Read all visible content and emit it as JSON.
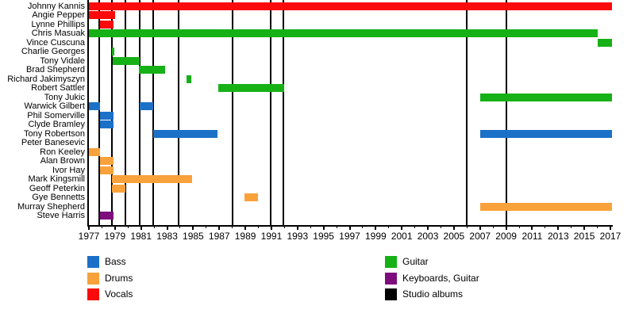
{
  "chart_data": {
    "type": "timeline-gantt",
    "description": "Band members timeline with studio album release markers",
    "axis": {
      "unit": "year",
      "min": 1977,
      "max": 2017,
      "major_tick_step": 2,
      "minor_tick_step": 1,
      "tick_years": [
        1977,
        1979,
        1981,
        1983,
        1985,
        1987,
        1989,
        1991,
        1993,
        1995,
        1997,
        1999,
        2001,
        2003,
        2005,
        2007,
        2009,
        2011,
        2013,
        2015,
        2017
      ]
    },
    "roles": {
      "Bass": "#1b70c8",
      "Drums": "#f9a13b",
      "Vocals": "#fa0a0a",
      "Guitar": "#16b116",
      "Keyboards, Guitar": "#7d0c7d"
    },
    "album_line_color": "#000000",
    "album_years": [
      1977.78,
      1978.78,
      1979.8,
      1980.9,
      1981.95,
      1983.9,
      1988.0,
      1990.95,
      1991.92,
      2006.0,
      2009.0
    ],
    "members": [
      {
        "name": "Johnny Kannis",
        "bars": [
          {
            "role": "Vocals",
            "start": 1977,
            "end": 2017.1
          }
        ]
      },
      {
        "name": "Angie Pepper",
        "bars": [
          {
            "role": "Vocals",
            "start": 1977,
            "end": 1979.0
          }
        ]
      },
      {
        "name": "Lynne Phillips",
        "bars": [
          {
            "role": "Vocals",
            "start": 1977.85,
            "end": 1978.9
          }
        ]
      },
      {
        "name": "Chris Masuak",
        "bars": [
          {
            "role": "Guitar",
            "start": 1977,
            "end": 2016.0
          }
        ]
      },
      {
        "name": "Vince Cuscuna",
        "bars": [
          {
            "role": "Guitar",
            "start": 2016.0,
            "end": 2017.1
          }
        ]
      },
      {
        "name": "Charlie Georges",
        "bars": [
          {
            "role": "Guitar",
            "start": 1978.78,
            "end": 1978.97
          }
        ]
      },
      {
        "name": "Tony Vidale",
        "bars": [
          {
            "role": "Guitar",
            "start": 1978.85,
            "end": 1980.9
          }
        ]
      },
      {
        "name": "Brad Shepherd",
        "bars": [
          {
            "role": "Guitar",
            "start": 1980.85,
            "end": 1982.85
          }
        ]
      },
      {
        "name": "Richard Jakimyszyn",
        "bars": [
          {
            "role": "Guitar",
            "start": 1984.5,
            "end": 1984.85
          }
        ]
      },
      {
        "name": "Robert Sattler",
        "bars": [
          {
            "role": "Guitar",
            "start": 1986.9,
            "end": 1992.0
          }
        ]
      },
      {
        "name": "Tony Jukic",
        "bars": [
          {
            "role": "Guitar",
            "start": 2007.0,
            "end": 2017.1
          }
        ]
      },
      {
        "name": "Warwick Gilbert",
        "bars": [
          {
            "role": "Bass",
            "start": 1977,
            "end": 1977.85
          },
          {
            "role": "Bass",
            "start": 1980.9,
            "end": 1981.95
          }
        ]
      },
      {
        "name": "Phil Somerville",
        "bars": [
          {
            "role": "Bass",
            "start": 1977.85,
            "end": 1978.9
          }
        ]
      },
      {
        "name": "Clyde Bramley",
        "bars": [
          {
            "role": "Bass",
            "start": 1977.85,
            "end": 1978.9
          }
        ]
      },
      {
        "name": "Tony Robertson",
        "bars": [
          {
            "role": "Bass",
            "start": 1981.95,
            "end": 1986.85
          },
          {
            "role": "Bass",
            "start": 2007.0,
            "end": 2017.1
          }
        ]
      },
      {
        "name": "Peter Banesevic",
        "bars": []
      },
      {
        "name": "Ron Keeley",
        "bars": [
          {
            "role": "Drums",
            "start": 1977,
            "end": 1977.85
          }
        ]
      },
      {
        "name": "Alan Brown",
        "bars": [
          {
            "role": "Drums",
            "start": 1977.85,
            "end": 1978.9
          }
        ]
      },
      {
        "name": "Ivor Hay",
        "bars": [
          {
            "role": "Drums",
            "start": 1977.85,
            "end": 1978.9
          }
        ]
      },
      {
        "name": "Mark Kingsmill",
        "bars": [
          {
            "role": "Drums",
            "start": 1978.78,
            "end": 1984.9
          }
        ]
      },
      {
        "name": "Geoff Peterkin",
        "bars": [
          {
            "role": "Drums",
            "start": 1978.78,
            "end": 1979.8
          }
        ]
      },
      {
        "name": "Gye Bennetts",
        "bars": [
          {
            "role": "Drums",
            "start": 1988.95,
            "end": 1989.95
          }
        ]
      },
      {
        "name": "Murray Shepherd",
        "bars": [
          {
            "role": "Drums",
            "start": 2007.0,
            "end": 2017.1
          }
        ]
      },
      {
        "name": "Steve Harris",
        "bars": [
          {
            "role": "Keyboards, Guitar",
            "start": 1977.85,
            "end": 1978.9
          }
        ]
      }
    ],
    "legend": [
      {
        "label": "Bass",
        "color": "#1b70c8"
      },
      {
        "label": "Drums",
        "color": "#f9a13b"
      },
      {
        "label": "Vocals",
        "color": "#fa0a0a"
      },
      {
        "label": "Guitar",
        "color": "#16b116"
      },
      {
        "label": "Keyboards, Guitar",
        "color": "#7d0c7d"
      },
      {
        "label": "Studio albums",
        "color": "#000000"
      }
    ],
    "legend_position": "bottom-two-columns",
    "grid": false
  }
}
